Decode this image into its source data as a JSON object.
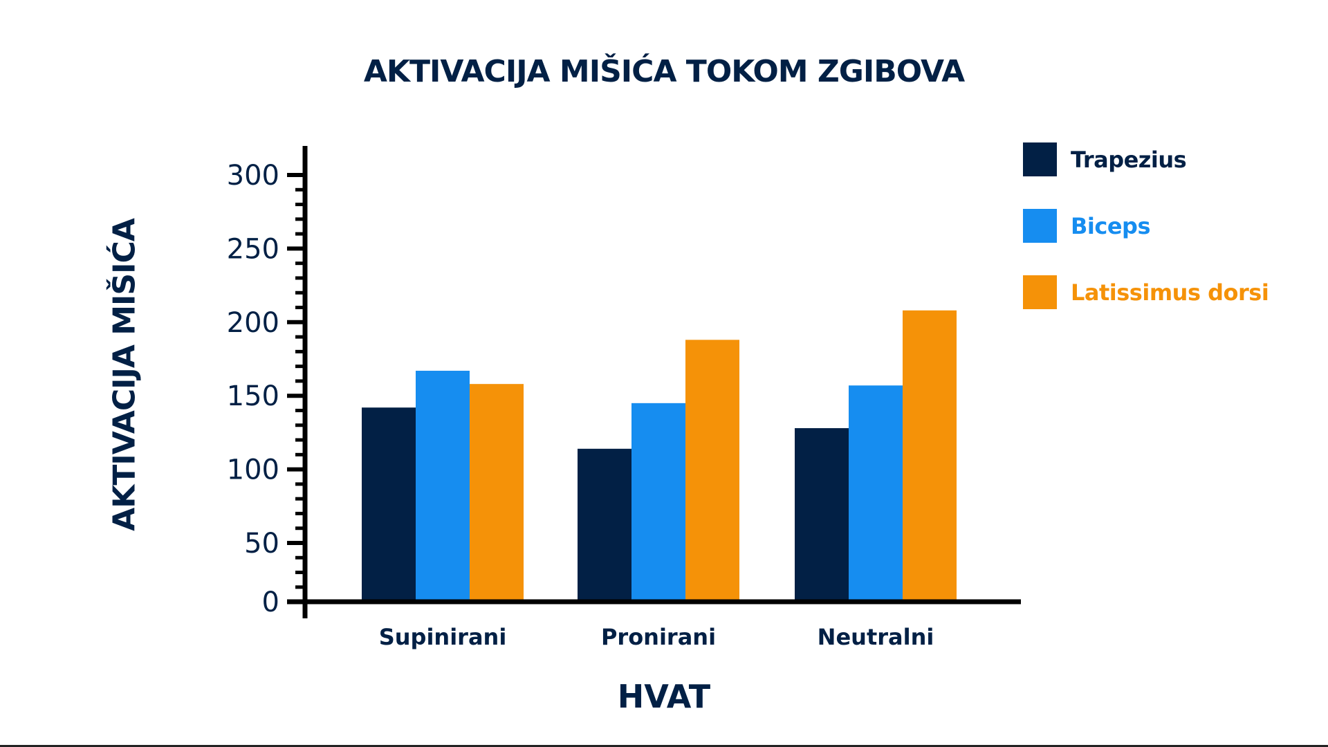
{
  "chart_data": {
    "type": "bar",
    "title": "AKTIVACIJA MIŠIĆA TOKOM ZGIBOVA",
    "xlabel": "HVAT",
    "ylabel": "AKTIVACIJA MIŠIĆA",
    "categories": [
      "Supinirani",
      "Pronirani",
      "Neutralni"
    ],
    "series": [
      {
        "name": "Trapezius",
        "color": "#022045",
        "values": [
          142,
          114,
          128
        ]
      },
      {
        "name": "Biceps",
        "color": "#168df0",
        "values": [
          167,
          145,
          157
        ]
      },
      {
        "name": "Latissimus dorsi",
        "color": "#f59208",
        "values": [
          158,
          188,
          208
        ]
      }
    ],
    "ylim": [
      0,
      300
    ],
    "yticks": [
      0,
      50,
      100,
      150,
      200,
      250,
      300
    ],
    "grid": false,
    "legend": "right"
  }
}
